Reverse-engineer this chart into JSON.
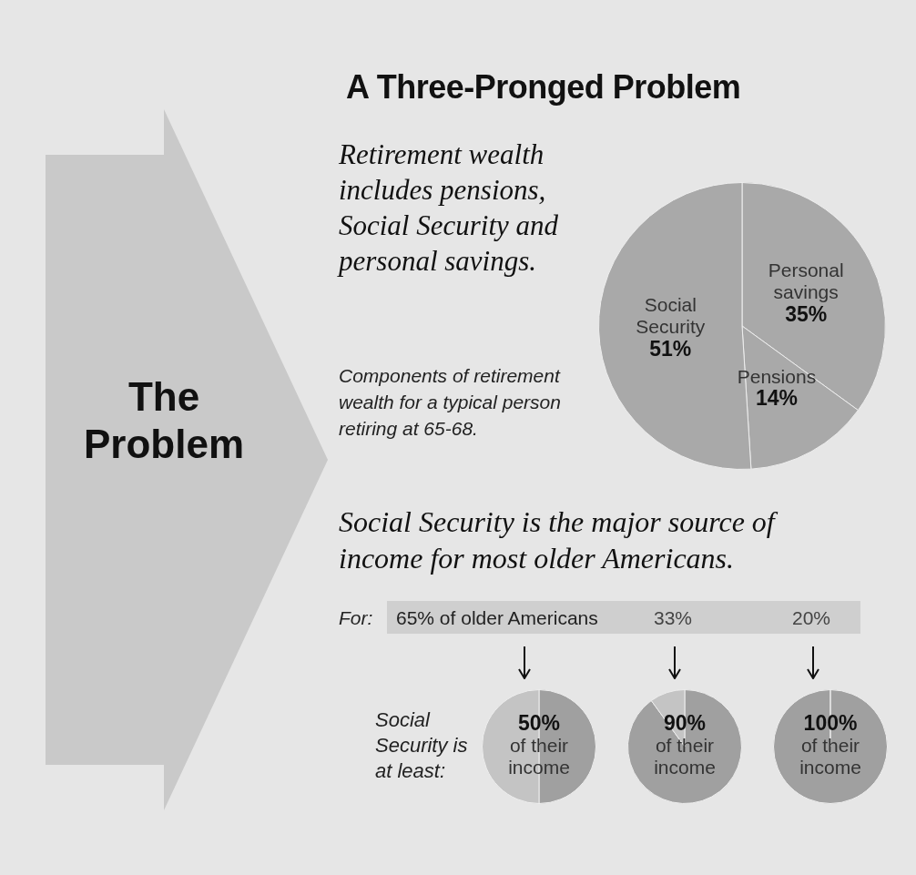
{
  "chart_data": [
    {
      "type": "pie",
      "title": "A Three-Pronged Problem",
      "subtitle": "Retirement wealth includes pensions, Social Security and personal savings.",
      "annotations": [
        "The Problem",
        "Components of retirement wealth for a typical person retiring at 65-68."
      ],
      "categories": [
        "Personal savings",
        "Pensions",
        "Social Security"
      ],
      "values": [
        35,
        14,
        51
      ],
      "colors": [
        "#a9a9a9",
        "#a9a9a9",
        "#a9a9a9"
      ],
      "value_labels": [
        "35%",
        "14%",
        "51%"
      ],
      "legend": false
    },
    {
      "type": "other",
      "title": "Social Security is the major source of income for most older Americans.",
      "annotations": [
        "For:",
        "65% of older Americans",
        "33%",
        "20%",
        "Social Security is at least:"
      ]
    },
    {
      "type": "pie",
      "categories": [
        "of their income",
        null
      ],
      "values": [
        50,
        50
      ],
      "value_labels": [
        "50%",
        null
      ],
      "colors": [
        "#a0a0a0",
        "#c4c4c4"
      ],
      "legend": false
    },
    {
      "type": "pie",
      "categories": [
        "of their income",
        null
      ],
      "values": [
        90,
        10
      ],
      "value_labels": [
        "90%",
        null
      ],
      "colors": [
        "#a0a0a0",
        "#c4c4c4"
      ],
      "legend": false
    },
    {
      "type": "pie",
      "categories": [
        "of their income"
      ],
      "values": [
        100
      ],
      "value_labels": [
        "100%"
      ],
      "colors": [
        "#a0a0a0"
      ],
      "legend": false
    }
  ]
}
